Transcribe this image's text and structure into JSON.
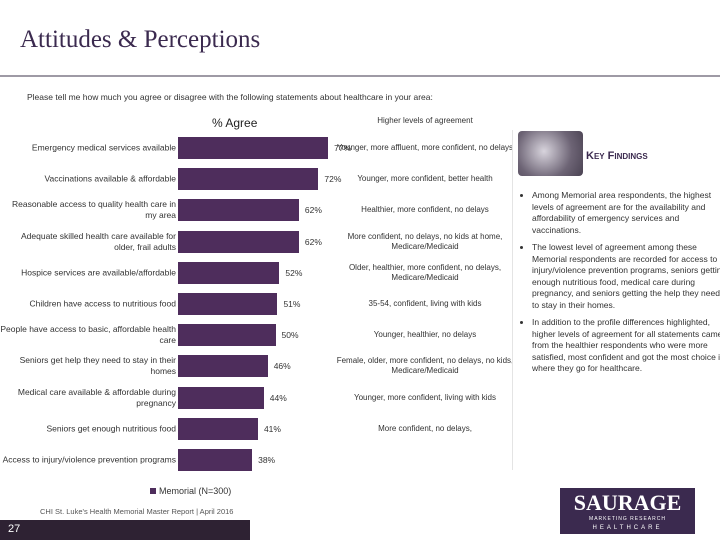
{
  "header": {
    "title": "Attitudes & Perceptions",
    "question": "Please tell me how much you agree or disagree with the following statements about healthcare in your area:"
  },
  "chart_data": {
    "type": "bar",
    "orientation": "horizontal",
    "title": "% Agree",
    "notes_title": "Higher levels of agreement",
    "color": "#4e2d5c",
    "categories": [
      "Emergency medical services available",
      "Vaccinations available & affordable",
      "Reasonable access to quality health care in my area",
      "Adequate skilled health care available for older, frail adults",
      "Hospice services are available/affordable",
      "Children have access to nutritious food",
      "People have access to basic, affordable health care",
      "Seniors get help they need to stay in their homes",
      "Medical care available & affordable during pregnancy",
      "Seniors get enough nutritious food",
      "Access to injury/violence prevention programs"
    ],
    "series": [
      {
        "name": "Memorial (N=300)",
        "color": "#4e2d5c",
        "values": [
          77,
          72,
          62,
          62,
          52,
          51,
          50,
          46,
          44,
          41,
          38
        ],
        "value_labels": [
          "77%",
          "72%",
          "62%",
          "62%",
          "52%",
          "51%",
          "50%",
          "46%",
          "44%",
          "41%",
          "38%"
        ]
      }
    ],
    "notes": [
      "Younger, more affluent, more confident, no delays",
      "Younger, more confident, better health",
      "Healthier, more confident, no delays",
      "More confident, no delays, no kids at home, Medicare/Medicaid",
      "Older, healthier, more confident, no delays, Medicare/Medicaid",
      "35-54, confident, living with kids",
      "Younger, healthier, no delays",
      "Female, older, more confident, no delays, no kids, Medicare/Medicaid",
      "Younger, more confident, living with kids",
      "More confident, no delays,",
      ""
    ]
  },
  "key_findings": {
    "title": "Key Findings",
    "bullets": [
      "Among Memorial area respondents, the highest levels of agreement are for the availability and affordability of emergency services and vaccinations.",
      "The lowest level of agreement among these Memorial respondents are recorded for access to injury/violence prevention programs, seniors getting enough nutritious food, medical care during pregnancy, and seniors getting the help they need to stay in their homes.",
      "In addition to the profile differences highlighted, higher levels of agreement for all statements came from the healthier respondents who were more satisfied, most confident and got the most choice in where they go for healthcare."
    ]
  },
  "footer": {
    "source": "CHI St. Luke's Health Memorial Master Report | April 2016",
    "page": "27"
  },
  "logo": {
    "name": "SAURAGE",
    "tagline": "MARKETING RESEARCH",
    "division": "HEALTHCARE"
  }
}
